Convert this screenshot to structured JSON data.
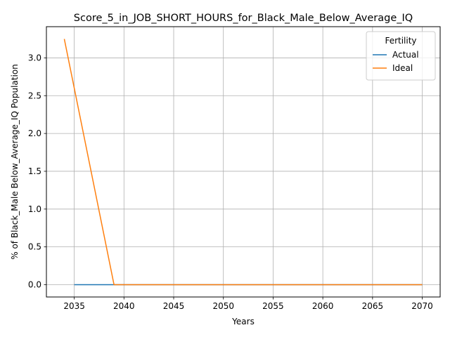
{
  "chart_data": {
    "type": "line",
    "title": "Score_5_in_JOB_SHORT_HOURS_for_Black_Male_Below_Average_IQ",
    "xlabel": "Years",
    "ylabel": "% of Black_Male Below_Average_IQ Population",
    "xlim": [
      2032.2,
      2071.8
    ],
    "ylim": [
      -0.1625,
      3.4125
    ],
    "xticks": [
      2035,
      2040,
      2045,
      2050,
      2055,
      2060,
      2065,
      2070
    ],
    "yticks": [
      0.0,
      0.5,
      1.0,
      1.5,
      2.0,
      2.5,
      3.0
    ],
    "grid": true,
    "legend": {
      "title": "Fertility",
      "placement": "top-right"
    },
    "series": [
      {
        "name": "Actual",
        "color": "#1f77b4",
        "x": [
          2035,
          2036,
          2037,
          2038,
          2039,
          2040,
          2041,
          2042,
          2043,
          2044,
          2045,
          2046,
          2047,
          2048,
          2049,
          2050,
          2051,
          2052,
          2053,
          2054,
          2055,
          2056,
          2057,
          2058,
          2059,
          2060,
          2061,
          2062,
          2063,
          2064,
          2065,
          2066,
          2067,
          2068,
          2069,
          2070
        ],
        "y": [
          0,
          0,
          0,
          0,
          0,
          0,
          0,
          0,
          0,
          0,
          0,
          0,
          0,
          0,
          0,
          0,
          0,
          0,
          0,
          0,
          0,
          0,
          0,
          0,
          0,
          0,
          0,
          0,
          0,
          0,
          0,
          0,
          0,
          0,
          0,
          0
        ]
      },
      {
        "name": "Ideal",
        "color": "#ff7f0e",
        "x": [
          2034,
          2035,
          2036,
          2037,
          2038,
          2039,
          2040,
          2041,
          2042,
          2043,
          2044,
          2045,
          2046,
          2047,
          2048,
          2049,
          2050,
          2051,
          2052,
          2053,
          2054,
          2055,
          2056,
          2057,
          2058,
          2059,
          2060,
          2061,
          2062,
          2063,
          2064,
          2065,
          2066,
          2067,
          2068,
          2069,
          2070
        ],
        "y": [
          3.25,
          2.6,
          1.95,
          1.3,
          0.65,
          0,
          0,
          0,
          0,
          0,
          0,
          0,
          0,
          0,
          0,
          0,
          0,
          0,
          0,
          0,
          0,
          0,
          0,
          0,
          0,
          0,
          0,
          0,
          0,
          0,
          0,
          0,
          0,
          0,
          0,
          0,
          0
        ]
      }
    ]
  }
}
